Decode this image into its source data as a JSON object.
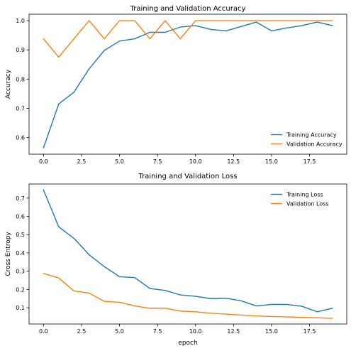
{
  "chart_data": [
    {
      "type": "line",
      "title": "Training and Validation Accuracy",
      "xlabel": "",
      "ylabel": "Accuracy",
      "xlim": [
        -0.95,
        19.95
      ],
      "ylim": [
        0.543,
        1.022
      ],
      "xticks": [
        0.0,
        2.5,
        5.0,
        7.5,
        10.0,
        12.5,
        15.0,
        17.5
      ],
      "xtick_labels": [
        "0.0",
        "2.5",
        "5.0",
        "7.5",
        "10.0",
        "12.5",
        "15.0",
        "17.5"
      ],
      "yticks": [
        0.6,
        0.7,
        0.8,
        0.9,
        1.0
      ],
      "ytick_labels": [
        "0.6",
        "0.7",
        "0.8",
        "0.9",
        "1.0"
      ],
      "grid": false,
      "legend_position": "lower-right",
      "x": [
        0,
        1,
        2,
        3,
        4,
        5,
        6,
        7,
        8,
        9,
        10,
        11,
        12,
        13,
        14,
        15,
        16,
        17,
        18,
        19
      ],
      "series": [
        {
          "name": "Training Accuracy",
          "color": "#1f77b4",
          "values": [
            0.565,
            0.715,
            0.755,
            0.835,
            0.898,
            0.93,
            0.938,
            0.96,
            0.96,
            0.978,
            0.983,
            0.97,
            0.965,
            0.98,
            0.995,
            0.965,
            0.975,
            0.983,
            0.995,
            0.983
          ]
        },
        {
          "name": "Validation Accuracy",
          "color": "#ff7f0e",
          "values": [
            0.938,
            0.875,
            0.938,
            1.0,
            0.938,
            1.0,
            1.0,
            0.938,
            1.0,
            0.938,
            1.0,
            1.0,
            1.0,
            1.0,
            1.0,
            1.0,
            1.0,
            1.0,
            1.0,
            1.0
          ]
        }
      ]
    },
    {
      "type": "line",
      "title": "Training and Validation Loss",
      "xlabel": "epoch",
      "ylabel": "Cross Entropy",
      "xlim": [
        -0.95,
        19.95
      ],
      "ylim": [
        0.011,
        0.777
      ],
      "xticks": [
        0.0,
        2.5,
        5.0,
        7.5,
        10.0,
        12.5,
        15.0,
        17.5
      ],
      "xtick_labels": [
        "0.0",
        "2.5",
        "5.0",
        "7.5",
        "10.0",
        "12.5",
        "15.0",
        "17.5"
      ],
      "yticks": [
        0.1,
        0.2,
        0.3,
        0.4,
        0.5,
        0.6,
        0.7
      ],
      "ytick_labels": [
        "0.1",
        "0.2",
        "0.3",
        "0.4",
        "0.5",
        "0.6",
        "0.7"
      ],
      "grid": false,
      "legend_position": "upper-right",
      "x": [
        0,
        1,
        2,
        3,
        4,
        5,
        6,
        7,
        8,
        9,
        10,
        11,
        12,
        13,
        14,
        15,
        16,
        17,
        18,
        19
      ],
      "series": [
        {
          "name": "Training Loss",
          "color": "#1f77b4",
          "values": [
            0.745,
            0.543,
            0.48,
            0.39,
            0.325,
            0.27,
            0.265,
            0.205,
            0.195,
            0.17,
            0.163,
            0.15,
            0.152,
            0.138,
            0.11,
            0.118,
            0.118,
            0.108,
            0.078,
            0.097
          ]
        },
        {
          "name": "Validation Loss",
          "color": "#ff7f0e",
          "values": [
            0.288,
            0.263,
            0.192,
            0.18,
            0.135,
            0.13,
            0.11,
            0.097,
            0.098,
            0.082,
            0.078,
            0.07,
            0.065,
            0.06,
            0.055,
            0.052,
            0.05,
            0.047,
            0.045,
            0.042
          ]
        }
      ]
    }
  ]
}
